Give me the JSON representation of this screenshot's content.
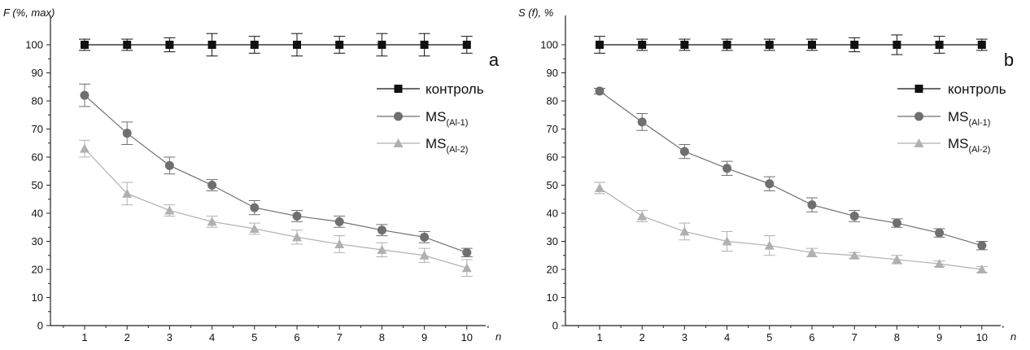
{
  "chart_data": [
    {
      "type": "line",
      "panel_label": "a",
      "ylabel": "F (%, max)",
      "xlabel": "n",
      "x": [
        1,
        2,
        3,
        4,
        5,
        6,
        7,
        8,
        9,
        10
      ],
      "ylim": [
        0,
        105
      ],
      "yticks": [
        0,
        10,
        20,
        30,
        40,
        50,
        60,
        70,
        80,
        90,
        100
      ],
      "legend_position": "top-right",
      "series": [
        {
          "name": "контроль",
          "marker": "square",
          "color": "#111111",
          "values": [
            100,
            100,
            100,
            100,
            100,
            100,
            100,
            100,
            100,
            100
          ],
          "errors": [
            2,
            2,
            2.5,
            4,
            3,
            4,
            3,
            4,
            4,
            3
          ]
        },
        {
          "name": "MS",
          "subscript": "(Al-1)",
          "marker": "circle",
          "color": "#6f6f6f",
          "values": [
            82,
            68.5,
            57,
            50,
            42,
            39,
            37,
            34,
            31.5,
            26
          ],
          "errors": [
            4,
            4,
            3,
            2,
            2.5,
            2,
            2,
            2,
            2,
            1.5
          ]
        },
        {
          "name": "MS",
          "subscript": "(Al-2)",
          "marker": "triangle",
          "color": "#b0b0b0",
          "values": [
            63,
            47,
            41,
            37,
            34.5,
            31.5,
            29,
            27,
            25,
            20.5
          ],
          "errors": [
            3,
            4,
            2,
            2,
            2,
            2.5,
            3,
            2.5,
            2.5,
            3
          ]
        }
      ]
    },
    {
      "type": "line",
      "panel_label": "b",
      "ylabel": "S (f), %",
      "xlabel": "n",
      "x": [
        1,
        2,
        3,
        4,
        5,
        6,
        7,
        8,
        9,
        10
      ],
      "ylim": [
        0,
        105
      ],
      "yticks": [
        0,
        10,
        20,
        30,
        40,
        50,
        60,
        70,
        80,
        90,
        100
      ],
      "legend_position": "top-right",
      "series": [
        {
          "name": "контроль",
          "marker": "square",
          "color": "#111111",
          "values": [
            100,
            100,
            100,
            100,
            100,
            100,
            100,
            100,
            100,
            100
          ],
          "errors": [
            3,
            2,
            2,
            2,
            2,
            2,
            2.5,
            3.5,
            3,
            2
          ]
        },
        {
          "name": "MS",
          "subscript": "(Al-1)",
          "marker": "circle",
          "color": "#6f6f6f",
          "values": [
            83.5,
            72.5,
            62,
            56,
            50.5,
            43,
            39,
            36.5,
            33,
            28.5
          ],
          "errors": [
            1,
            3,
            2.5,
            2.5,
            2.5,
            2.5,
            2,
            1.5,
            1.5,
            1.5
          ]
        },
        {
          "name": "MS",
          "subscript": "(Al-2)",
          "marker": "triangle",
          "color": "#b0b0b0",
          "values": [
            49,
            39,
            33.5,
            30,
            28.5,
            26,
            25,
            23.5,
            22,
            20
          ],
          "errors": [
            2,
            2,
            3,
            3.5,
            3.5,
            1.5,
            1,
            1.5,
            1,
            1
          ]
        }
      ]
    }
  ]
}
